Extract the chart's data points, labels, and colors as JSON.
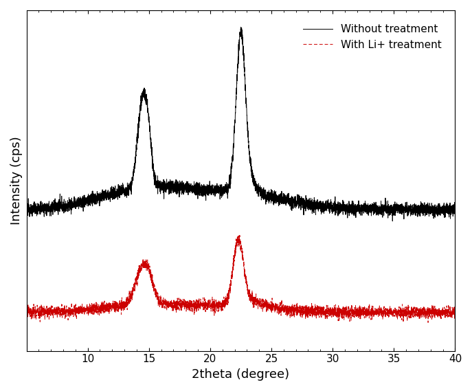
{
  "xlabel": "2theta (degree)",
  "ylabel": "Intensity (cps)",
  "xlim": [
    5,
    40
  ],
  "line1_color": "#000000",
  "line2_color": "#cc0000",
  "line1_label": "Without treatment",
  "line2_label": "With Li+ treatment",
  "line1_lw": 0.7,
  "line2_lw": 0.7,
  "line2_dashes": [
    5,
    3
  ],
  "black_baseline": 0.4,
  "red_baseline": 0.08,
  "noise_amp_black": 0.01,
  "noise_amp_red": 0.009,
  "background_color": "#ffffff",
  "legend_fontsize": 11,
  "axis_fontsize": 13,
  "tick_fontsize": 11,
  "x_ticks": [
    10,
    15,
    20,
    25,
    30,
    35,
    40
  ]
}
